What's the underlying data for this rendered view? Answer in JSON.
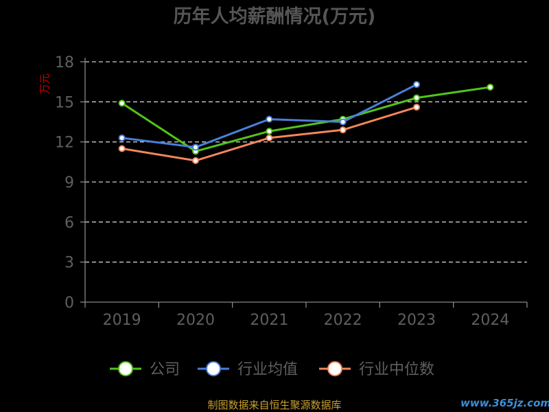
{
  "chart_data": {
    "type": "line",
    "title": "历年人均薪酬情况(万元)",
    "ylabel": "万元",
    "xlabel": "",
    "categories": [
      "2019",
      "2020",
      "2021",
      "2022",
      "2023",
      "2024"
    ],
    "ylim": [
      0,
      18
    ],
    "yticks": [
      "0",
      "3",
      "6",
      "9",
      "12",
      "15",
      "18"
    ],
    "grid": true,
    "legend_position": "bottom",
    "series": [
      {
        "name": "公司",
        "color": "#52c41a",
        "values": [
          14.9,
          11.3,
          12.8,
          13.7,
          15.3,
          16.1
        ]
      },
      {
        "name": "行业均值",
        "color": "#4a7fdc",
        "values": [
          12.3,
          11.6,
          13.7,
          13.5,
          16.3,
          null
        ]
      },
      {
        "name": "行业中位数",
        "color": "#f4875a",
        "values": [
          11.5,
          10.6,
          12.3,
          12.9,
          14.6,
          null
        ]
      }
    ]
  },
  "footer": {
    "source": "制图数据来自恒生聚源数据库",
    "watermark": "www.365jz.com"
  },
  "colors": {
    "background": "#000000",
    "ylabel": "#cc0000",
    "source": "#c8a030",
    "watermark": "#3a8fd8",
    "grid": "#cccccc"
  }
}
